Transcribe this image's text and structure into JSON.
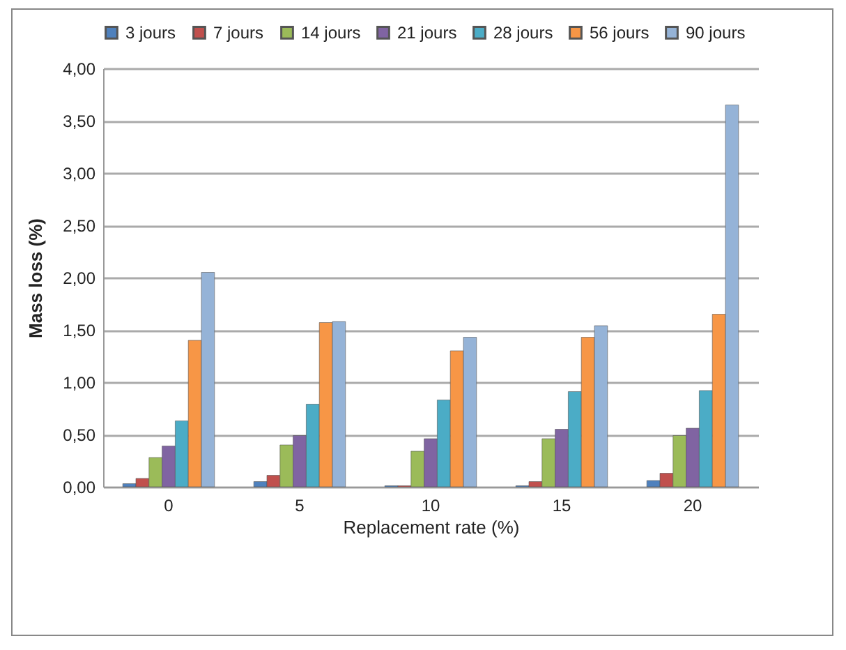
{
  "chart_data": {
    "type": "bar",
    "xlabel": "Replacement rate (%)",
    "ylabel": "Mass  loss (%)",
    "categories": [
      "0",
      "5",
      "10",
      "15",
      "20"
    ],
    "series": [
      {
        "name": "3 jours",
        "color": "#4f81bd",
        "values": [
          0.03,
          0.05,
          0.01,
          0.01,
          0.06
        ]
      },
      {
        "name": "7 jours",
        "color": "#c0504d",
        "values": [
          0.08,
          0.11,
          0.01,
          0.05,
          0.13
        ]
      },
      {
        "name": "14 jours",
        "color": "#9bbb59",
        "values": [
          0.28,
          0.4,
          0.34,
          0.46,
          0.49
        ]
      },
      {
        "name": "21 jours",
        "color": "#8064a2",
        "values": [
          0.39,
          0.49,
          0.46,
          0.55,
          0.56
        ]
      },
      {
        "name": "28 jours",
        "color": "#4bacc6",
        "values": [
          0.63,
          0.79,
          0.83,
          0.91,
          0.92
        ]
      },
      {
        "name": "56 jours",
        "color": "#f79646",
        "values": [
          1.4,
          1.57,
          1.3,
          1.43,
          1.65
        ]
      },
      {
        "name": "90 jours",
        "color": "#95b3d7",
        "values": [
          2.05,
          1.58,
          1.43,
          1.54,
          3.65
        ]
      }
    ],
    "ylim": [
      0,
      4
    ],
    "yticks": [
      {
        "value": 0,
        "label": "0,00"
      },
      {
        "value": 0.5,
        "label": "0,50"
      },
      {
        "value": 1,
        "label": "1,00"
      },
      {
        "value": 1.5,
        "label": "1,50"
      },
      {
        "value": 2,
        "label": "2,00"
      },
      {
        "value": 2.5,
        "label": "2,50"
      },
      {
        "value": 3,
        "label": "3,00"
      },
      {
        "value": 3.5,
        "label": "3,50"
      },
      {
        "value": 4,
        "label": "4,00"
      }
    ],
    "grid": "y",
    "legend": "top"
  }
}
